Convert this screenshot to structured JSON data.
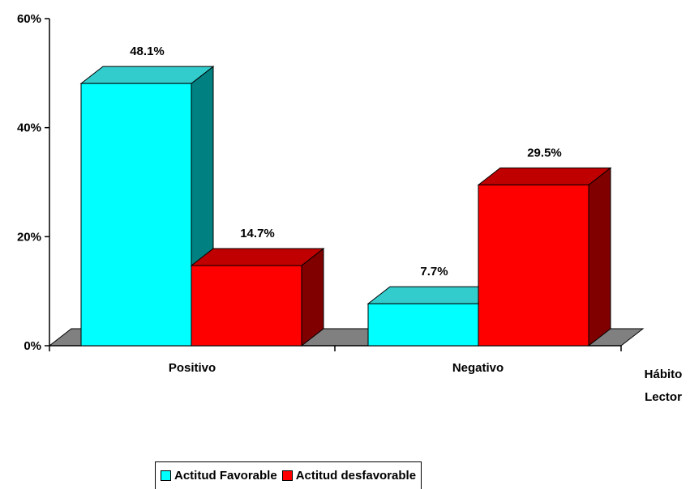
{
  "chart_data": {
    "type": "bar",
    "categories": [
      "Positivo",
      "Negativo"
    ],
    "series": [
      {
        "name": "Actitud Favorable",
        "values": [
          48.1,
          7.7
        ],
        "color": "#00FFFF",
        "side_color": "#008080",
        "top_color": "#33CCCC"
      },
      {
        "name": "Actitud desfavorable",
        "values": [
          14.7,
          29.5
        ],
        "color": "#FF0000",
        "side_color": "#800000",
        "top_color": "#C00000"
      }
    ],
    "data_labels": [
      [
        "48.1%",
        "7.7%"
      ],
      [
        "14.7%",
        "29.5%"
      ]
    ],
    "y_ticks": [
      "0%",
      "20%",
      "40%",
      "60%"
    ],
    "ylim": [
      0,
      60
    ],
    "xlabel_lines": [
      "Hábito",
      "Lector"
    ],
    "floor_color": "#808080",
    "three_d": true,
    "legend_position": "bottom"
  }
}
